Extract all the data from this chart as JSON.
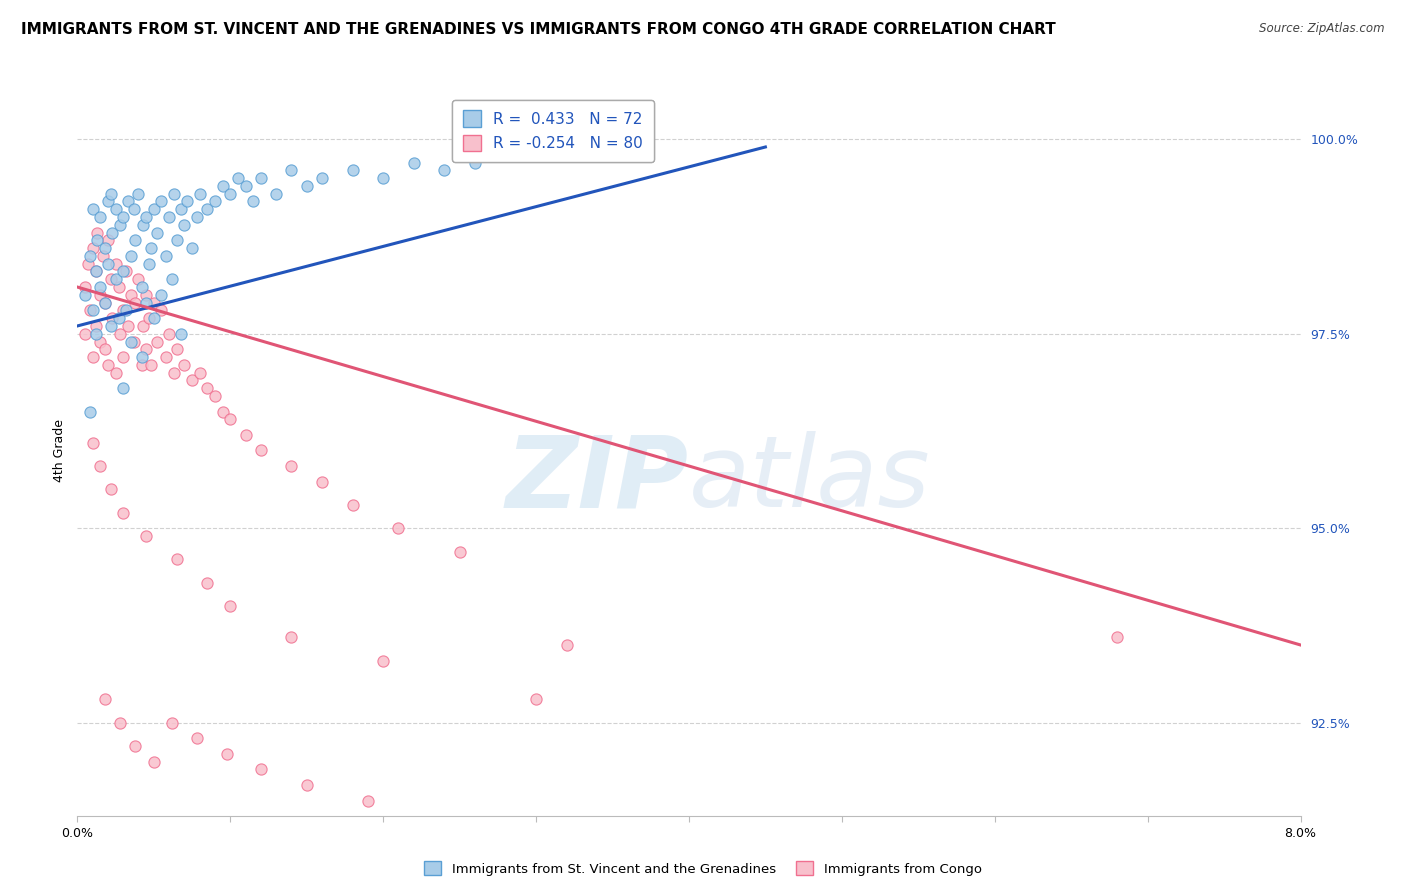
{
  "title": "IMMIGRANTS FROM ST. VINCENT AND THE GRENADINES VS IMMIGRANTS FROM CONGO 4TH GRADE CORRELATION CHART",
  "source": "Source: ZipAtlas.com",
  "ylabel_label": "4th Grade",
  "xmin": 0.0,
  "xmax": 8.0,
  "ymin": 91.3,
  "ymax": 100.7,
  "yticks": [
    92.5,
    95.0,
    97.5,
    100.0
  ],
  "xticks": [
    0.0,
    1.0,
    2.0,
    3.0,
    4.0,
    5.0,
    6.0,
    7.0,
    8.0
  ],
  "blue_R": 0.433,
  "blue_N": 72,
  "pink_R": -0.254,
  "pink_N": 80,
  "blue_color": "#a8cce8",
  "pink_color": "#f8c0cc",
  "blue_edge": "#5a9fd4",
  "pink_edge": "#f07090",
  "blue_line_color": "#2255bb",
  "pink_line_color": "#e05575",
  "watermark_zip": "ZIP",
  "watermark_atlas": "atlas",
  "legend_blue": "Immigrants from St. Vincent and the Grenadines",
  "legend_pink": "Immigrants from Congo",
  "blue_scatter_x": [
    0.05,
    0.08,
    0.1,
    0.1,
    0.12,
    0.12,
    0.13,
    0.15,
    0.15,
    0.18,
    0.18,
    0.2,
    0.2,
    0.22,
    0.22,
    0.23,
    0.25,
    0.25,
    0.27,
    0.28,
    0.3,
    0.3,
    0.32,
    0.33,
    0.35,
    0.35,
    0.37,
    0.38,
    0.4,
    0.42,
    0.43,
    0.45,
    0.45,
    0.47,
    0.48,
    0.5,
    0.5,
    0.52,
    0.55,
    0.55,
    0.58,
    0.6,
    0.62,
    0.63,
    0.65,
    0.68,
    0.7,
    0.72,
    0.75,
    0.78,
    0.8,
    0.85,
    0.9,
    0.95,
    1.0,
    1.05,
    1.1,
    1.15,
    1.2,
    1.3,
    1.4,
    1.5,
    1.6,
    1.8,
    2.0,
    2.2,
    2.4,
    2.6,
    0.08,
    0.42,
    0.68,
    0.3
  ],
  "blue_scatter_y": [
    98.0,
    98.5,
    99.1,
    97.8,
    98.3,
    97.5,
    98.7,
    99.0,
    98.1,
    98.6,
    97.9,
    99.2,
    98.4,
    99.3,
    97.6,
    98.8,
    99.1,
    98.2,
    97.7,
    98.9,
    99.0,
    98.3,
    97.8,
    99.2,
    98.5,
    97.4,
    99.1,
    98.7,
    99.3,
    98.1,
    98.9,
    99.0,
    97.9,
    98.4,
    98.6,
    99.1,
    97.7,
    98.8,
    99.2,
    98.0,
    98.5,
    99.0,
    98.2,
    99.3,
    98.7,
    99.1,
    98.9,
    99.2,
    98.6,
    99.0,
    99.3,
    99.1,
    99.2,
    99.4,
    99.3,
    99.5,
    99.4,
    99.2,
    99.5,
    99.3,
    99.6,
    99.4,
    99.5,
    99.6,
    99.5,
    99.7,
    99.6,
    99.7,
    96.5,
    97.2,
    97.5,
    96.8
  ],
  "pink_scatter_x": [
    0.05,
    0.05,
    0.07,
    0.08,
    0.1,
    0.1,
    0.12,
    0.12,
    0.13,
    0.15,
    0.15,
    0.17,
    0.18,
    0.18,
    0.2,
    0.2,
    0.22,
    0.23,
    0.25,
    0.25,
    0.27,
    0.28,
    0.3,
    0.3,
    0.32,
    0.33,
    0.35,
    0.37,
    0.38,
    0.4,
    0.42,
    0.43,
    0.45,
    0.45,
    0.47,
    0.48,
    0.5,
    0.52,
    0.55,
    0.58,
    0.6,
    0.63,
    0.65,
    0.7,
    0.75,
    0.8,
    0.85,
    0.9,
    0.95,
    1.0,
    1.1,
    1.2,
    1.4,
    1.6,
    1.8,
    2.1,
    2.5,
    0.1,
    0.15,
    0.22,
    0.3,
    0.45,
    0.65,
    0.85,
    1.0,
    1.4,
    2.0,
    3.0,
    3.2,
    0.18,
    0.28,
    0.38,
    0.5,
    0.62,
    0.78,
    0.98,
    1.2,
    1.5,
    1.9,
    6.8
  ],
  "pink_scatter_y": [
    98.1,
    97.5,
    98.4,
    97.8,
    98.6,
    97.2,
    98.3,
    97.6,
    98.8,
    98.0,
    97.4,
    98.5,
    97.9,
    97.3,
    98.7,
    97.1,
    98.2,
    97.7,
    98.4,
    97.0,
    98.1,
    97.5,
    97.8,
    97.2,
    98.3,
    97.6,
    98.0,
    97.4,
    97.9,
    98.2,
    97.1,
    97.6,
    98.0,
    97.3,
    97.7,
    97.1,
    97.9,
    97.4,
    97.8,
    97.2,
    97.5,
    97.0,
    97.3,
    97.1,
    96.9,
    97.0,
    96.8,
    96.7,
    96.5,
    96.4,
    96.2,
    96.0,
    95.8,
    95.6,
    95.3,
    95.0,
    94.7,
    96.1,
    95.8,
    95.5,
    95.2,
    94.9,
    94.6,
    94.3,
    94.0,
    93.6,
    93.3,
    92.8,
    93.5,
    92.8,
    92.5,
    92.2,
    92.0,
    92.5,
    92.3,
    92.1,
    91.9,
    91.7,
    91.5,
    93.6
  ],
  "blue_trend_x": [
    0.0,
    4.5
  ],
  "blue_trend_y": [
    97.6,
    99.9
  ],
  "pink_trend_x": [
    0.0,
    8.0
  ],
  "pink_trend_y": [
    98.1,
    93.5
  ],
  "background_color": "#ffffff",
  "grid_color": "#cccccc",
  "title_fontsize": 11,
  "dot_size": 65
}
